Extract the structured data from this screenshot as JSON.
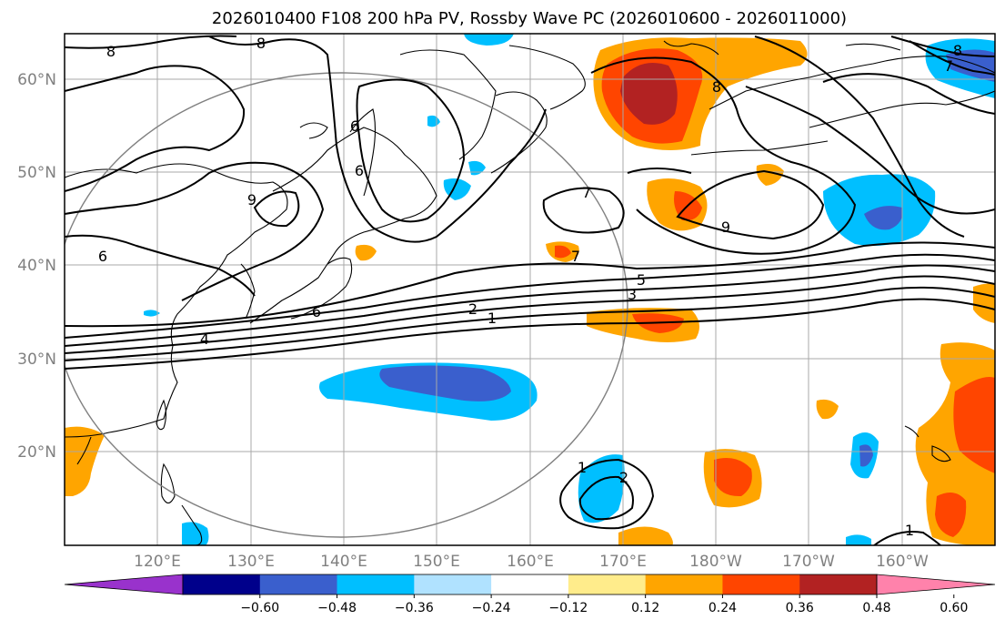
{
  "title": "2026010400 F108 200 hPa PV, Rossby Wave PC (2026010600 - 2026011000)",
  "axes": {
    "lat_labels": [
      "60°N",
      "50°N",
      "40°N",
      "30°N",
      "20°N"
    ],
    "lon_labels": [
      "120°E",
      "130°E",
      "140°E",
      "150°E",
      "160°E",
      "170°E",
      "180°W",
      "170°W",
      "160°W"
    ]
  },
  "colorbar": {
    "ticks": [
      "−0.60",
      "−0.48",
      "−0.36",
      "−0.24",
      "−0.12",
      "0.12",
      "0.24",
      "0.36",
      "0.48",
      "0.60"
    ],
    "colors": [
      "#9932cc",
      "#00008b",
      "#3a5fcd",
      "#00bfff",
      "#b0e2ff",
      "#ffffff",
      "#ffec8b",
      "#ffa500",
      "#ff4500",
      "#b22222",
      "#ff82ab"
    ]
  },
  "contour_labels": [
    "8",
    "8",
    "8",
    "7",
    "6",
    "9",
    "6",
    "6",
    "7",
    "7",
    "9",
    "8",
    "5",
    "3",
    "2",
    "1",
    "4",
    "6",
    "1",
    "2",
    "1"
  ],
  "colors": {
    "frame": "#000000",
    "grid": "#a0a0a0",
    "circle": "#808080"
  }
}
